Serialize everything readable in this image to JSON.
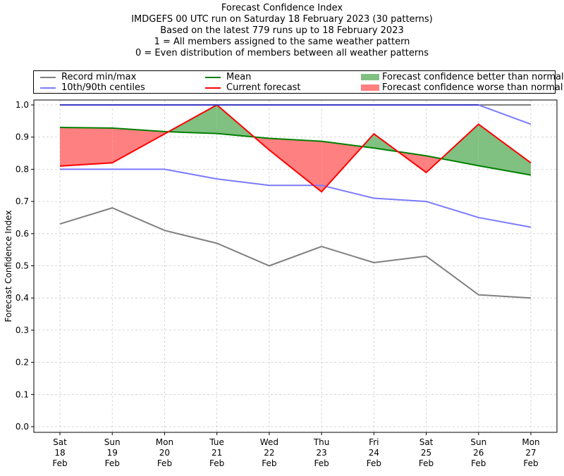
{
  "titles": [
    "Forecast Confidence Index",
    "IMDGEFS 00 UTC run on Saturday 18 February 2023 (30 patterns)",
    "Based on the latest 779 runs up to 18 February 2023",
    "1 = All members assigned to the same weather pattern",
    "0 = Even distribution of members between all weather patterns"
  ],
  "legend": {
    "items": [
      {
        "label": "Record min/max",
        "kind": "line",
        "color": "#808080"
      },
      {
        "label": "10th/90th centiles",
        "kind": "line",
        "color": "#7b7bff"
      },
      {
        "label": "Mean",
        "kind": "line",
        "color": "#008000"
      },
      {
        "label": "Current forecast",
        "kind": "line",
        "color": "#ff0000"
      },
      {
        "label": "Forecast confidence better than normal",
        "kind": "patch",
        "color": "#80c080"
      },
      {
        "label": "Forecast confidence worse than normal",
        "kind": "patch",
        "color": "#ff8080"
      }
    ]
  },
  "chart_data": {
    "type": "line",
    "title": "Forecast Confidence Index",
    "xlabel": "",
    "ylabel": "Forecast Confidence Index",
    "ylim": [
      0.0,
      1.0
    ],
    "yticks": [
      "0.0",
      "0.1",
      "0.2",
      "0.3",
      "0.4",
      "0.5",
      "0.6",
      "0.7",
      "0.8",
      "0.9",
      "1.0"
    ],
    "grid": true,
    "legend_position": "top (above plot)",
    "categories": [
      [
        "Sat",
        "18",
        "Feb"
      ],
      [
        "Sun",
        "19",
        "Feb"
      ],
      [
        "Mon",
        "20",
        "Feb"
      ],
      [
        "Tue",
        "21",
        "Feb"
      ],
      [
        "Wed",
        "22",
        "Feb"
      ],
      [
        "Thu",
        "23",
        "Feb"
      ],
      [
        "Fri",
        "24",
        "Feb"
      ],
      [
        "Sat",
        "25",
        "Feb"
      ],
      [
        "Sun",
        "26",
        "Feb"
      ],
      [
        "Mon",
        "27",
        "Feb"
      ]
    ],
    "series": [
      {
        "name": "Record max",
        "legend": "Record min/max",
        "color": "#808080",
        "values": [
          1.0,
          1.0,
          1.0,
          1.0,
          1.0,
          1.0,
          1.0,
          1.0,
          1.0,
          1.0
        ]
      },
      {
        "name": "Record min",
        "legend": "Record min/max",
        "color": "#808080",
        "values": [
          0.63,
          0.68,
          0.61,
          0.57,
          0.5,
          0.56,
          0.51,
          0.53,
          0.41,
          0.4
        ]
      },
      {
        "name": "90th centile",
        "legend": "10th/90th centiles",
        "color": "#7b7bff",
        "values": [
          1.0,
          1.0,
          1.0,
          1.0,
          1.0,
          1.0,
          1.0,
          1.0,
          1.0,
          0.94
        ]
      },
      {
        "name": "10th centile",
        "legend": "10th/90th centiles",
        "color": "#7b7bff",
        "values": [
          0.8,
          0.8,
          0.8,
          0.77,
          0.75,
          0.75,
          0.71,
          0.7,
          0.65,
          0.62
        ]
      },
      {
        "name": "Mean",
        "color": "#008000",
        "values": [
          0.93,
          0.928,
          0.917,
          0.911,
          0.896,
          0.887,
          0.866,
          0.842,
          0.811,
          0.782
        ]
      },
      {
        "name": "Current forecast",
        "color": "#ff0000",
        "values": [
          0.81,
          0.82,
          0.91,
          1.0,
          0.86,
          0.73,
          0.91,
          0.79,
          0.94,
          0.82
        ]
      }
    ],
    "fills": {
      "better": {
        "label": "Forecast confidence better than normal",
        "color": "#80c080"
      },
      "worse": {
        "label": "Forecast confidence worse than normal",
        "color": "#ff8080"
      }
    }
  }
}
